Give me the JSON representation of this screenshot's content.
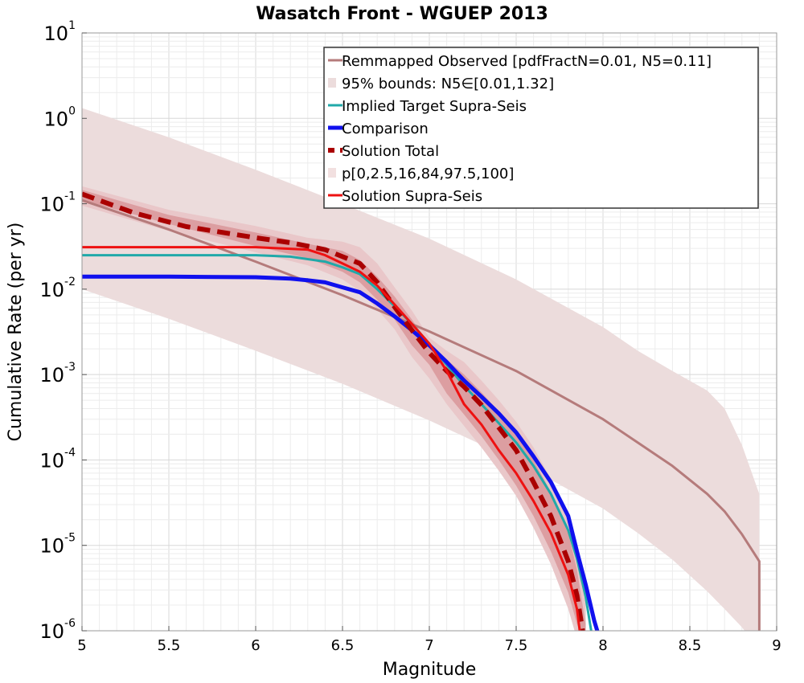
{
  "chart_data": {
    "type": "line",
    "title": "Wasatch Front - WGUEP 2013",
    "xlabel": "Magnitude",
    "ylabel": "Cumulative Rate (per yr)",
    "xlim": [
      5,
      9
    ],
    "ylim": [
      1e-06,
      10
    ],
    "yscale": "log",
    "grid": true,
    "legend_position": "top-right",
    "x_ticks": [
      "5",
      "5.5",
      "6",
      "6.5",
      "7",
      "7.5",
      "8",
      "8.5",
      "9"
    ],
    "y_ticks": [
      {
        "base": "10",
        "exp": "-6",
        "value": 1e-06
      },
      {
        "base": "10",
        "exp": "-5",
        "value": 1e-05
      },
      {
        "base": "10",
        "exp": "-4",
        "value": 0.0001
      },
      {
        "base": "10",
        "exp": "-3",
        "value": 0.001
      },
      {
        "base": "10",
        "exp": "-2",
        "value": 0.01
      },
      {
        "base": "10",
        "exp": "-1",
        "value": 0.1
      },
      {
        "base": "10",
        "exp": "0",
        "value": 1
      },
      {
        "base": "10",
        "exp": "1",
        "value": 10
      }
    ],
    "bands": [
      {
        "name": "95% bounds: N5∈[0.01,1.32]",
        "color": "#ecdcdc",
        "legend_index": 1,
        "x": [
          5,
          5.5,
          6,
          6.5,
          7,
          7.5,
          8,
          8.2,
          8.4,
          8.6,
          8.7,
          8.8,
          8.9,
          8.9
        ],
        "lower": [
          0.01,
          0.0045,
          0.0019,
          0.00078,
          0.00029,
          9.8e-05,
          2.7e-05,
          1.4e-05,
          6.8e-06,
          2.9e-06,
          1.8e-06,
          1.1e-06,
          6e-07,
          6e-07
        ],
        "upper": [
          1.32,
          0.6,
          0.25,
          0.1,
          0.039,
          0.013,
          0.0036,
          0.0019,
          0.0011,
          0.00065,
          0.0004,
          0.00015,
          4e-05,
          6e-07
        ]
      },
      {
        "name": "p[0,2.5,16,84,97.5,100] outer",
        "color": "#e9c7c9",
        "legend_index": 5,
        "x": [
          5,
          5.5,
          6,
          6.3,
          6.5,
          6.6,
          6.7,
          6.8,
          6.9,
          7.0,
          7.1,
          7.2,
          7.3,
          7.4,
          7.5,
          7.6,
          7.7,
          7.8,
          7.85,
          7.9
        ],
        "lower": [
          0.095,
          0.048,
          0.027,
          0.019,
          0.013,
          0.0095,
          0.0058,
          0.0034,
          0.0016,
          0.0009,
          0.00045,
          0.00025,
          0.00014,
          7.5e-05,
          3.8e-05,
          1.6e-05,
          6e-06,
          1.8e-06,
          8e-07,
          6e-07
        ],
        "upper": [
          0.16,
          0.085,
          0.055,
          0.04,
          0.036,
          0.031,
          0.02,
          0.0105,
          0.0056,
          0.0027,
          0.0019,
          0.0014,
          0.00085,
          0.0005,
          0.00028,
          0.00014,
          6e-05,
          2.2e-05,
          8e-06,
          2e-06
        ]
      },
      {
        "name": "p inner",
        "color": "#dc9ea1",
        "legend_index": 5,
        "x": [
          5,
          5.5,
          6,
          6.3,
          6.5,
          6.6,
          6.7,
          6.8,
          6.9,
          7.0,
          7.1,
          7.2,
          7.3,
          7.4,
          7.5,
          7.6,
          7.7,
          7.8,
          7.85,
          7.9
        ],
        "lower": [
          0.11,
          0.058,
          0.032,
          0.023,
          0.016,
          0.012,
          0.0075,
          0.0044,
          0.0022,
          0.0013,
          0.0006,
          0.00034,
          0.00019,
          0.0001,
          5e-05,
          2.2e-05,
          8.5e-06,
          2.8e-06,
          1.2e-06,
          7e-07
        ],
        "upper": [
          0.145,
          0.074,
          0.046,
          0.034,
          0.028,
          0.022,
          0.014,
          0.0082,
          0.0044,
          0.0022,
          0.0015,
          0.001,
          0.00062,
          0.00037,
          0.0002,
          0.0001,
          4.2e-05,
          1.4e-05,
          5.2e-06,
          1.2e-06
        ]
      }
    ],
    "series": [
      {
        "name": "Remmapped Observed [pdfFractN=0.01, N5=0.11]",
        "color": "#b57b7b",
        "width": 3,
        "dash": "",
        "legend_index": 0,
        "x": [
          5,
          5.5,
          6,
          6.5,
          7,
          7.5,
          8,
          8.2,
          8.4,
          8.6,
          8.7,
          8.8,
          8.9,
          8.9
        ],
        "y": [
          0.11,
          0.05,
          0.021,
          0.0085,
          0.0032,
          0.0011,
          0.0003,
          0.00016,
          8.5e-05,
          4e-05,
          2.5e-05,
          1.35e-05,
          6.5e-06,
          6e-07
        ]
      },
      {
        "name": "Implied Target Supra-Seis",
        "color": "#20a9a9",
        "width": 3,
        "dash": "",
        "legend_index": 2,
        "x": [
          5,
          5.5,
          6,
          6.2,
          6.4,
          6.5,
          6.6,
          6.7,
          6.8,
          6.9,
          7.0,
          7.1,
          7.2,
          7.3,
          7.4,
          7.5,
          7.6,
          7.7,
          7.8,
          7.85,
          7.9,
          7.95
        ],
        "y": [
          0.025,
          0.025,
          0.025,
          0.024,
          0.021,
          0.018,
          0.015,
          0.01,
          0.0063,
          0.0039,
          0.0023,
          0.0013,
          0.00074,
          0.00045,
          0.00027,
          0.00016,
          8.5e-05,
          4e-05,
          1.5e-05,
          7e-06,
          2.5e-06,
          6e-07
        ]
      },
      {
        "name": "Comparison",
        "color": "#1010ee",
        "width": 5,
        "dash": "",
        "legend_index": 3,
        "x": [
          5,
          5.5,
          6,
          6.2,
          6.3,
          6.4,
          6.5,
          6.6,
          6.7,
          6.8,
          6.9,
          7.0,
          7.1,
          7.2,
          7.3,
          7.4,
          7.5,
          7.6,
          7.7,
          7.8,
          7.85,
          7.9,
          7.95,
          8.0
        ],
        "y": [
          0.014,
          0.014,
          0.0138,
          0.0133,
          0.0127,
          0.012,
          0.0105,
          0.0092,
          0.0068,
          0.0048,
          0.0033,
          0.0022,
          0.0014,
          0.00085,
          0.00055,
          0.00035,
          0.00021,
          0.00011,
          5.5e-05,
          2.2e-05,
          8.5e-06,
          3.5e-06,
          1.3e-06,
          6e-07
        ]
      },
      {
        "name": "Solution Total",
        "color": "#aa0000",
        "width": 6,
        "dash": "16,9",
        "legend_index": 4,
        "x": [
          5,
          5.3,
          5.6,
          6.0,
          6.2,
          6.4,
          6.5,
          6.6,
          6.7,
          6.8,
          6.9,
          7.0,
          7.1,
          7.2,
          7.3,
          7.4,
          7.5,
          7.6,
          7.7,
          7.8,
          7.85,
          7.9
        ],
        "y": [
          0.13,
          0.078,
          0.054,
          0.04,
          0.035,
          0.029,
          0.024,
          0.02,
          0.012,
          0.0062,
          0.0033,
          0.0018,
          0.0011,
          0.00072,
          0.00044,
          0.00024,
          0.00013,
          5.5e-05,
          2.2e-05,
          6.5e-06,
          2.6e-06,
          6e-07
        ]
      },
      {
        "name": "Solution Supra-Seis",
        "color": "#ee1111",
        "width": 3,
        "dash": "",
        "legend_index": 6,
        "x": [
          5,
          5.5,
          6,
          6.3,
          6.4,
          6.5,
          6.6,
          6.7,
          6.8,
          6.9,
          7.0,
          7.1,
          7.2,
          7.3,
          7.4,
          7.5,
          7.6,
          7.7,
          7.8,
          7.85,
          7.88
        ],
        "y": [
          0.031,
          0.031,
          0.031,
          0.029,
          0.025,
          0.02,
          0.016,
          0.011,
          0.0066,
          0.0039,
          0.0023,
          0.0011,
          0.00045,
          0.00026,
          0.00013,
          7e-05,
          3.3e-05,
          1.4e-05,
          4.5e-06,
          1.8e-06,
          6e-07
        ]
      }
    ],
    "legend": [
      {
        "label": "Remmapped Observed [pdfFractN=0.01, N5=0.11]",
        "kind": "line",
        "color": "#b57b7b",
        "width": 3,
        "dash": ""
      },
      {
        "label": "95% bounds: N5∈[0.01,1.32]",
        "kind": "patch",
        "color": "#ecdcdc",
        "width": 0,
        "dash": ""
      },
      {
        "label": "Implied Target Supra-Seis",
        "kind": "line",
        "color": "#20a9a9",
        "width": 3,
        "dash": ""
      },
      {
        "label": "Comparison",
        "kind": "line",
        "color": "#1010ee",
        "width": 5,
        "dash": ""
      },
      {
        "label": "Solution Total",
        "kind": "line",
        "color": "#aa0000",
        "width": 6,
        "dash": "8,7"
      },
      {
        "label": "p[0,2.5,16,84,97.5,100]",
        "kind": "patch",
        "color": "#f2e0e0",
        "width": 0,
        "dash": ""
      },
      {
        "label": "Solution Supra-Seis",
        "kind": "line",
        "color": "#ee1111",
        "width": 3,
        "dash": ""
      }
    ]
  }
}
